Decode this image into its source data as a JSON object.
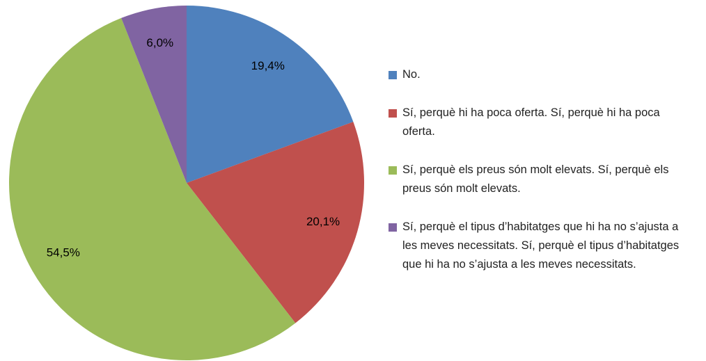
{
  "chart_data": {
    "type": "pie",
    "categories": [
      "No.",
      "Sí, perquè hi ha poca oferta. Sí, perquè hi ha poca oferta.",
      "Sí, perquè els preus són molt elevats. Sí, perquè els preus són molt elevats.",
      "Sí, perquè el tipus d’habitatges que hi ha no s’ajusta a les meves necessitats. Sí, perquè el tipus d’habitatges que hi ha no s’ajusta a les meves necessitats."
    ],
    "values": [
      19.4,
      20.1,
      54.5,
      6.0
    ],
    "value_labels": [
      "19,4%",
      "20,1%",
      "54,5%",
      "6,0%"
    ],
    "colors": [
      "#4f81bd",
      "#c0504d",
      "#9bbb59",
      "#8064a2"
    ],
    "legend": "right"
  }
}
